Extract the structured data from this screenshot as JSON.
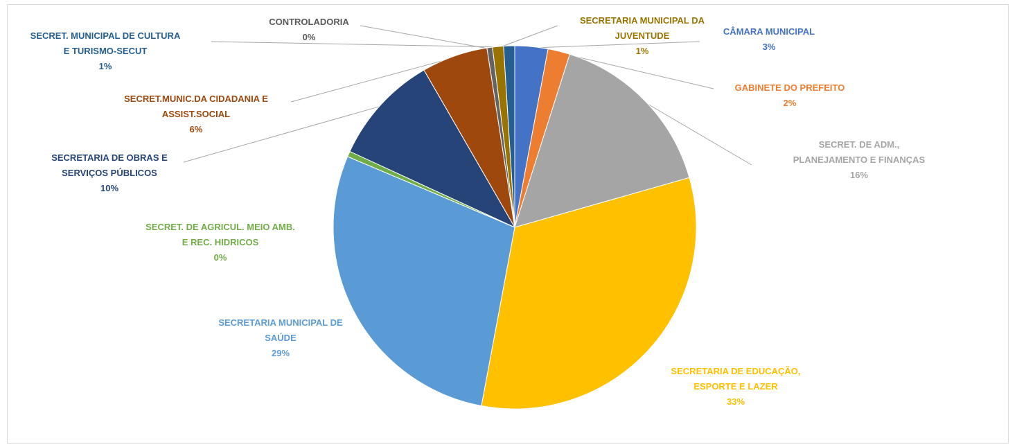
{
  "chart_data": {
    "type": "pie",
    "slices": [
      {
        "label_lines": [
          "CÂMARA MUNICIPAL"
        ],
        "value": 3,
        "pct_label": "3%",
        "color": "#4472c4",
        "label_color": "#4472c4"
      },
      {
        "label_lines": [
          "GABINETE DO PREFEITO"
        ],
        "value": 2,
        "pct_label": "2%",
        "color": "#ed7d31",
        "label_color": "#ed7d31"
      },
      {
        "label_lines": [
          "SECRET. DE ADM.,",
          "PLANEJAMENTO E FINANÇAS"
        ],
        "value": 16,
        "pct_label": "16%",
        "color": "#a5a5a5",
        "label_color": "#a5a5a5"
      },
      {
        "label_lines": [
          "SECRETARIA DE EDUCAÇÃO,",
          "ESPORTE E LAZER"
        ],
        "value": 33,
        "pct_label": "33%",
        "color": "#ffc000",
        "label_color": "#ffc000"
      },
      {
        "label_lines": [
          "SECRETARIA MUNICIPAL DE",
          "SAÚDE"
        ],
        "value": 29,
        "pct_label": "29%",
        "color": "#5b9bd5",
        "label_color": "#5b9bd5"
      },
      {
        "label_lines": [
          "SECRET. DE AGRICUL. MEIO AMB.",
          "E REC. HIDRICOS"
        ],
        "value": 0,
        "pct_label": "0%",
        "color": "#70ad47",
        "label_color": "#70ad47"
      },
      {
        "label_lines": [
          "SECRETARIA DE OBRAS E",
          "SERVIÇOS PÚBLICOS"
        ],
        "value": 10,
        "pct_label": "10%",
        "color": "#264478",
        "label_color": "#264478"
      },
      {
        "label_lines": [
          "SECRET.MUNIC.DA CIDADANIA E",
          "ASSIST.SOCIAL"
        ],
        "value": 6,
        "pct_label": "6%",
        "color": "#9e480e",
        "label_color": "#9e480e"
      },
      {
        "label_lines": [
          "CONTROLADORIA"
        ],
        "value": 0,
        "pct_label": "0%",
        "color": "#636363",
        "label_color": "#595959"
      },
      {
        "label_lines": [
          "SECRETARIA MUNICIPAL DA",
          "JUVENTUDE"
        ],
        "value": 1,
        "pct_label": "1%",
        "color": "#997300",
        "label_color": "#997300"
      },
      {
        "label_lines": [
          "SECRET. MUNICIPAL DE CULTURA",
          "E TURISMO-SECUT"
        ],
        "value": 1,
        "pct_label": "1%",
        "color": "#255e91",
        "label_color": "#255e91"
      }
    ],
    "legend": "none",
    "start_angle": "12 o'clock",
    "direction": "clockwise"
  }
}
